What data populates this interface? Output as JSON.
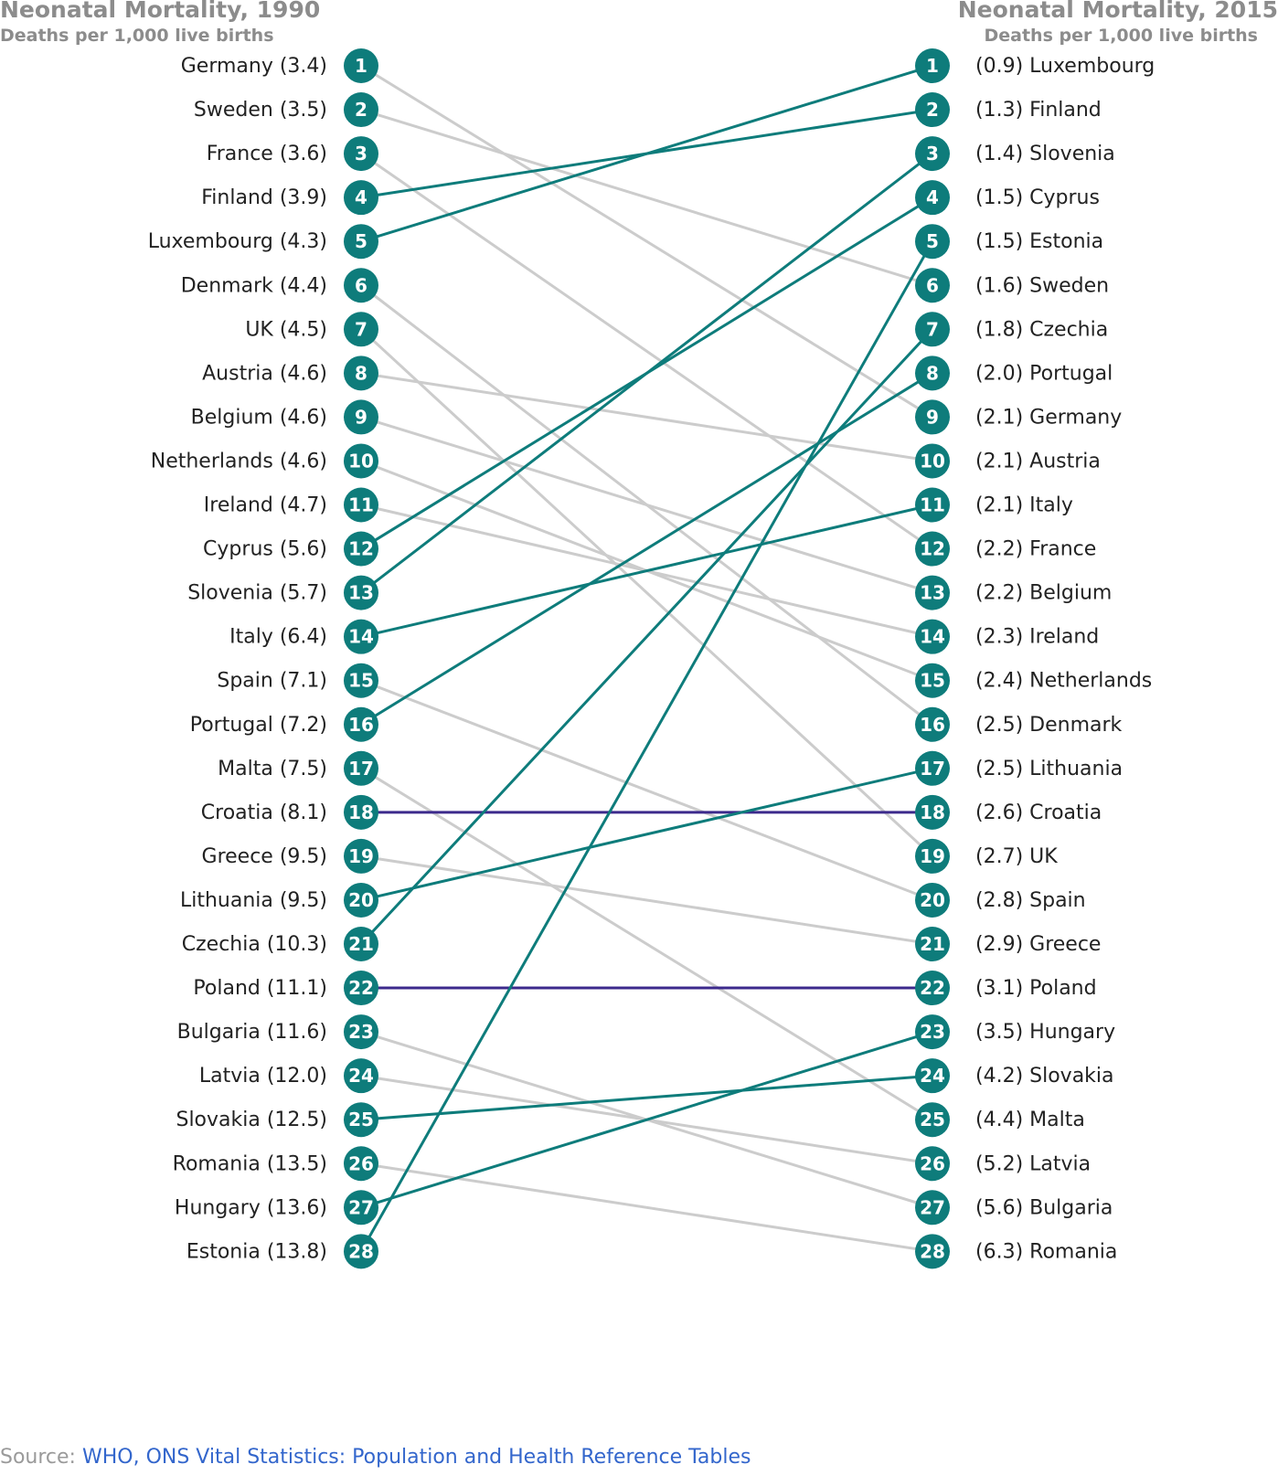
{
  "colors": {
    "improved": "#0e7c7b",
    "declined": "#cccccc",
    "unchanged": "#3c2a8c",
    "marker": "#0e7c7b",
    "header": "#8c8c8c",
    "link": "#3366cc"
  },
  "chart_data": {
    "type": "slope",
    "left": {
      "title": "Neonatal Mortality, 1990",
      "subtitle": "Deaths per 1,000 live births",
      "items": [
        {
          "rank": 1,
          "country": "Germany",
          "value": 3.4,
          "label": "Germany (3.4)"
        },
        {
          "rank": 2,
          "country": "Sweden",
          "value": 3.5,
          "label": "Sweden (3.5)"
        },
        {
          "rank": 3,
          "country": "France",
          "value": 3.6,
          "label": "France (3.6)"
        },
        {
          "rank": 4,
          "country": "Finland",
          "value": 3.9,
          "label": "Finland (3.9)"
        },
        {
          "rank": 5,
          "country": "Luxembourg",
          "value": 4.3,
          "label": "Luxembourg (4.3)"
        },
        {
          "rank": 6,
          "country": "Denmark",
          "value": 4.4,
          "label": "Denmark (4.4)"
        },
        {
          "rank": 7,
          "country": "UK",
          "value": 4.5,
          "label": "UK (4.5)"
        },
        {
          "rank": 8,
          "country": "Austria",
          "value": 4.6,
          "label": "Austria (4.6)"
        },
        {
          "rank": 9,
          "country": "Belgium",
          "value": 4.6,
          "label": "Belgium (4.6)"
        },
        {
          "rank": 10,
          "country": "Netherlands",
          "value": 4.6,
          "label": "Netherlands (4.6)"
        },
        {
          "rank": 11,
          "country": "Ireland",
          "value": 4.7,
          "label": "Ireland (4.7)"
        },
        {
          "rank": 12,
          "country": "Cyprus",
          "value": 5.6,
          "label": "Cyprus (5.6)"
        },
        {
          "rank": 13,
          "country": "Slovenia",
          "value": 5.7,
          "label": "Slovenia (5.7)"
        },
        {
          "rank": 14,
          "country": "Italy",
          "value": 6.4,
          "label": "Italy (6.4)"
        },
        {
          "rank": 15,
          "country": "Spain",
          "value": 7.1,
          "label": "Spain (7.1)"
        },
        {
          "rank": 16,
          "country": "Portugal",
          "value": 7.2,
          "label": "Portugal (7.2)"
        },
        {
          "rank": 17,
          "country": "Malta",
          "value": 7.5,
          "label": "Malta (7.5)"
        },
        {
          "rank": 18,
          "country": "Croatia",
          "value": 8.1,
          "label": "Croatia (8.1)"
        },
        {
          "rank": 19,
          "country": "Greece",
          "value": 9.5,
          "label": "Greece (9.5)"
        },
        {
          "rank": 20,
          "country": "Lithuania",
          "value": 9.5,
          "label": "Lithuania (9.5)"
        },
        {
          "rank": 21,
          "country": "Czechia",
          "value": 10.3,
          "label": "Czechia (10.3)"
        },
        {
          "rank": 22,
          "country": "Poland",
          "value": 11.1,
          "label": "Poland (11.1)"
        },
        {
          "rank": 23,
          "country": "Bulgaria",
          "value": 11.6,
          "label": "Bulgaria (11.6)"
        },
        {
          "rank": 24,
          "country": "Latvia",
          "value": 12.0,
          "label": "Latvia (12.0)"
        },
        {
          "rank": 25,
          "country": "Slovakia",
          "value": 12.5,
          "label": "Slovakia (12.5)"
        },
        {
          "rank": 26,
          "country": "Romania",
          "value": 13.5,
          "label": "Romania (13.5)"
        },
        {
          "rank": 27,
          "country": "Hungary",
          "value": 13.6,
          "label": "Hungary (13.6)"
        },
        {
          "rank": 28,
          "country": "Estonia",
          "value": 13.8,
          "label": "Estonia (13.8)"
        }
      ]
    },
    "right": {
      "title": "Neonatal Mortality, 2015",
      "subtitle": "Deaths per 1,000 live births",
      "items": [
        {
          "rank": 1,
          "country": "Luxembourg",
          "value": 0.9,
          "label": "(0.9) Luxembourg"
        },
        {
          "rank": 2,
          "country": "Finland",
          "value": 1.3,
          "label": "(1.3) Finland"
        },
        {
          "rank": 3,
          "country": "Slovenia",
          "value": 1.4,
          "label": "(1.4) Slovenia"
        },
        {
          "rank": 4,
          "country": "Cyprus",
          "value": 1.5,
          "label": "(1.5) Cyprus"
        },
        {
          "rank": 5,
          "country": "Estonia",
          "value": 1.5,
          "label": "(1.5) Estonia"
        },
        {
          "rank": 6,
          "country": "Sweden",
          "value": 1.6,
          "label": "(1.6) Sweden"
        },
        {
          "rank": 7,
          "country": "Czechia",
          "value": 1.8,
          "label": "(1.8) Czechia"
        },
        {
          "rank": 8,
          "country": "Portugal",
          "value": 2.0,
          "label": "(2.0) Portugal"
        },
        {
          "rank": 9,
          "country": "Germany",
          "value": 2.1,
          "label": "(2.1) Germany"
        },
        {
          "rank": 10,
          "country": "Austria",
          "value": 2.1,
          "label": "(2.1) Austria"
        },
        {
          "rank": 11,
          "country": "Italy",
          "value": 2.1,
          "label": "(2.1) Italy"
        },
        {
          "rank": 12,
          "country": "France",
          "value": 2.2,
          "label": "(2.2) France"
        },
        {
          "rank": 13,
          "country": "Belgium",
          "value": 2.2,
          "label": "(2.2) Belgium"
        },
        {
          "rank": 14,
          "country": "Ireland",
          "value": 2.3,
          "label": "(2.3) Ireland"
        },
        {
          "rank": 15,
          "country": "Netherlands",
          "value": 2.4,
          "label": "(2.4) Netherlands"
        },
        {
          "rank": 16,
          "country": "Denmark",
          "value": 2.5,
          "label": "(2.5) Denmark"
        },
        {
          "rank": 17,
          "country": "Lithuania",
          "value": 2.5,
          "label": "(2.5) Lithuania"
        },
        {
          "rank": 18,
          "country": "Croatia",
          "value": 2.6,
          "label": "(2.6) Croatia"
        },
        {
          "rank": 19,
          "country": "UK",
          "value": 2.7,
          "label": "(2.7) UK"
        },
        {
          "rank": 20,
          "country": "Spain",
          "value": 2.8,
          "label": "(2.8) Spain"
        },
        {
          "rank": 21,
          "country": "Greece",
          "value": 2.9,
          "label": "(2.9) Greece"
        },
        {
          "rank": 22,
          "country": "Poland",
          "value": 3.1,
          "label": "(3.1) Poland"
        },
        {
          "rank": 23,
          "country": "Hungary",
          "value": 3.5,
          "label": "(3.5) Hungary"
        },
        {
          "rank": 24,
          "country": "Slovakia",
          "value": 4.2,
          "label": "(4.2) Slovakia"
        },
        {
          "rank": 25,
          "country": "Malta",
          "value": 4.4,
          "label": "(4.4) Malta"
        },
        {
          "rank": 26,
          "country": "Latvia",
          "value": 5.2,
          "label": "(5.2) Latvia"
        },
        {
          "rank": 27,
          "country": "Bulgaria",
          "value": 5.6,
          "label": "(5.6) Bulgaria"
        },
        {
          "rank": 28,
          "country": "Romania",
          "value": 6.3,
          "label": "(6.3) Romania"
        }
      ]
    },
    "improved_countries": [
      "Finland",
      "Luxembourg",
      "Cyprus",
      "Slovenia",
      "Italy",
      "Portugal",
      "Lithuania",
      "Czechia",
      "Slovakia",
      "Hungary",
      "Estonia"
    ],
    "unchanged_countries": [
      "Croatia",
      "Poland"
    ]
  },
  "source": {
    "prefix": "Source: ",
    "link_text": "WHO, ONS Vital Statistics: Population and Health Reference Tables"
  }
}
